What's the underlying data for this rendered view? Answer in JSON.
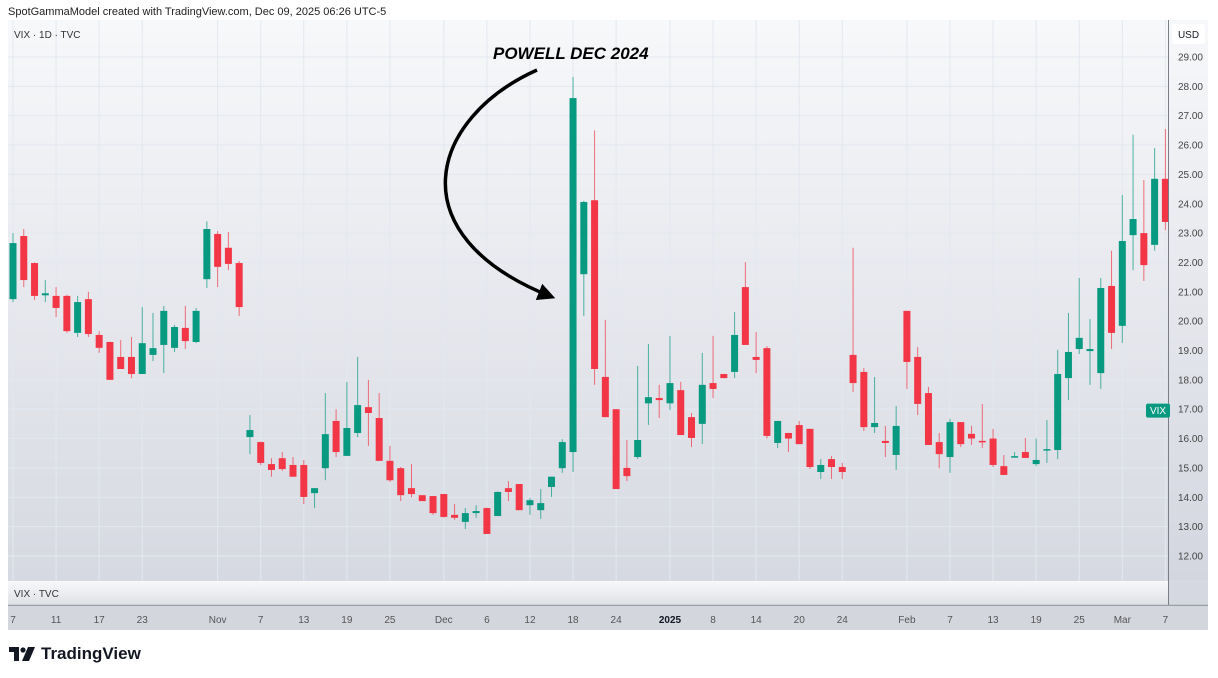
{
  "header": {
    "credit": "SpotGammaModel created with TradingView.com, Dec 09, 2025 06:26 UTC-5"
  },
  "legend": {
    "main": "VIX · 1D · TVC",
    "sub_pane": "VIX · TVC"
  },
  "price_axis": {
    "currency": "USD",
    "price_label": "VIX",
    "price_label_value": 16.95
  },
  "footer": {
    "brand": "TradingView"
  },
  "colors": {
    "up": "#089981",
    "down": "#f23645",
    "label": "#089981"
  },
  "chart_data": {
    "type": "candlestick",
    "title": "VIX · 1D · TVC",
    "annotation": "POWELL DEC 2024",
    "annotation_target_index": 52,
    "ylabel": "USD",
    "ylim": [
      11.2,
      30.2
    ],
    "y_ticks": [
      "12.00",
      "13.00",
      "14.00",
      "15.00",
      "16.00",
      "17.00",
      "18.00",
      "19.00",
      "20.00",
      "21.00",
      "22.00",
      "23.00",
      "24.00",
      "25.00",
      "26.00",
      "27.00",
      "28.00",
      "29.00"
    ],
    "x_ticks": [
      {
        "label": "7",
        "index": 0
      },
      {
        "label": "11",
        "index": 4
      },
      {
        "label": "17",
        "index": 8
      },
      {
        "label": "23",
        "index": 12
      },
      {
        "label": "Nov",
        "index": 19
      },
      {
        "label": "7",
        "index": 23
      },
      {
        "label": "13",
        "index": 27
      },
      {
        "label": "19",
        "index": 31
      },
      {
        "label": "25",
        "index": 35
      },
      {
        "label": "Dec",
        "index": 40
      },
      {
        "label": "6",
        "index": 44
      },
      {
        "label": "12",
        "index": 48
      },
      {
        "label": "18",
        "index": 52
      },
      {
        "label": "24",
        "index": 56
      },
      {
        "label": "2025",
        "index": 61,
        "bold": true
      },
      {
        "label": "8",
        "index": 65
      },
      {
        "label": "14",
        "index": 69
      },
      {
        "label": "20",
        "index": 73
      },
      {
        "label": "24",
        "index": 77
      },
      {
        "label": "Feb",
        "index": 83
      },
      {
        "label": "7",
        "index": 87
      },
      {
        "label": "13",
        "index": 91
      },
      {
        "label": "19",
        "index": 95
      },
      {
        "label": "25",
        "index": 99
      },
      {
        "label": "Mar",
        "index": 103
      },
      {
        "label": "7",
        "index": 107
      }
    ],
    "ohlc": [
      [
        20.75,
        23.0,
        20.65,
        22.66
      ],
      [
        22.9,
        23.14,
        21.16,
        21.4
      ],
      [
        21.98,
        22.0,
        20.72,
        20.86
      ],
      [
        20.88,
        21.4,
        20.65,
        20.95
      ],
      [
        20.86,
        21.16,
        20.14,
        20.45
      ],
      [
        20.86,
        20.9,
        19.6,
        19.66
      ],
      [
        19.6,
        20.86,
        19.46,
        20.65
      ],
      [
        20.75,
        21.0,
        19.46,
        19.56
      ],
      [
        19.53,
        19.66,
        18.92,
        19.09
      ],
      [
        19.29,
        19.3,
        18.0,
        18.0
      ],
      [
        18.78,
        19.36,
        18.37,
        18.37
      ],
      [
        18.78,
        19.46,
        18.06,
        18.2
      ],
      [
        18.2,
        20.48,
        18.2,
        19.25
      ],
      [
        18.85,
        20.28,
        18.64,
        19.08
      ],
      [
        19.19,
        20.52,
        18.23,
        20.35
      ],
      [
        19.09,
        19.87,
        18.95,
        19.8
      ],
      [
        19.77,
        20.52,
        19.05,
        19.32
      ],
      [
        19.29,
        20.45,
        19.25,
        20.35
      ],
      [
        21.43,
        23.4,
        21.13,
        23.14
      ],
      [
        22.97,
        23.07,
        21.16,
        21.85
      ],
      [
        22.5,
        23.04,
        21.74,
        21.95
      ],
      [
        21.98,
        22.05,
        20.18,
        20.48
      ],
      [
        16.05,
        16.8,
        15.47,
        16.29
      ],
      [
        15.88,
        15.9,
        15.1,
        15.17
      ],
      [
        15.13,
        15.33,
        14.7,
        14.93
      ],
      [
        15.33,
        15.54,
        14.9,
        14.96
      ],
      [
        15.1,
        15.37,
        14.7,
        14.7
      ],
      [
        15.1,
        15.27,
        13.77,
        14.01
      ],
      [
        14.14,
        14.31,
        13.63,
        14.31
      ],
      [
        14.99,
        17.55,
        14.58,
        16.15
      ],
      [
        16.6,
        17.0,
        15.37,
        15.54
      ],
      [
        15.41,
        17.93,
        15.41,
        16.36
      ],
      [
        16.19,
        18.78,
        16.05,
        17.14
      ],
      [
        17.07,
        18.0,
        15.75,
        16.87
      ],
      [
        16.7,
        17.55,
        15.24,
        15.24
      ],
      [
        15.24,
        15.75,
        14.52,
        14.58
      ],
      [
        14.99,
        15.03,
        13.87,
        14.07
      ],
      [
        14.31,
        15.13,
        14.0,
        14.11
      ],
      [
        14.07,
        14.07,
        13.87,
        13.87
      ],
      [
        14.04,
        14.04,
        13.4,
        13.46
      ],
      [
        14.11,
        14.11,
        13.3,
        13.33
      ],
      [
        13.4,
        13.77,
        13.23,
        13.3
      ],
      [
        13.16,
        13.63,
        12.92,
        13.46
      ],
      [
        13.46,
        13.73,
        13.3,
        13.53
      ],
      [
        13.63,
        13.65,
        12.75,
        12.75
      ],
      [
        13.36,
        14.2,
        13.36,
        14.18
      ],
      [
        14.31,
        14.55,
        13.87,
        14.18
      ],
      [
        14.45,
        14.45,
        13.56,
        13.56
      ],
      [
        13.73,
        13.97,
        13.4,
        13.9
      ],
      [
        13.56,
        14.28,
        13.26,
        13.8
      ],
      [
        14.35,
        14.7,
        14.01,
        14.7
      ],
      [
        14.99,
        15.98,
        14.83,
        15.88
      ],
      [
        15.54,
        28.32,
        14.86,
        27.6
      ],
      [
        21.6,
        24.1,
        20.18,
        24.06
      ],
      [
        24.12,
        26.5,
        17.83,
        18.37
      ],
      [
        18.1,
        20.04,
        16.73,
        16.73
      ],
      [
        17.0,
        17.0,
        14.28,
        14.28
      ],
      [
        15.0,
        15.95,
        14.55,
        14.72
      ],
      [
        15.37,
        18.47,
        15.3,
        15.95
      ],
      [
        17.2,
        19.22,
        16.46,
        17.41
      ],
      [
        17.38,
        17.83,
        16.7,
        17.31
      ],
      [
        17.2,
        19.5,
        16.97,
        17.89
      ],
      [
        17.65,
        17.93,
        16.12,
        16.12
      ],
      [
        16.73,
        16.87,
        15.71,
        16.02
      ],
      [
        16.5,
        18.92,
        15.81,
        17.83
      ],
      [
        17.89,
        19.5,
        17.38,
        17.69
      ],
      [
        18.2,
        18.2,
        18.06,
        18.06
      ],
      [
        18.27,
        20.31,
        18.06,
        19.53
      ],
      [
        21.16,
        22.01,
        19.19,
        19.19
      ],
      [
        18.78,
        19.63,
        18.23,
        18.68
      ],
      [
        19.08,
        19.15,
        16.0,
        16.09
      ],
      [
        15.85,
        16.6,
        15.68,
        16.6
      ],
      [
        16.19,
        16.19,
        15.54,
        16.0
      ],
      [
        16.46,
        16.6,
        15.81,
        15.81
      ],
      [
        16.33,
        16.33,
        14.96,
        15.03
      ],
      [
        14.86,
        15.3,
        14.62,
        15.1
      ],
      [
        15.3,
        15.41,
        14.62,
        15.03
      ],
      [
        15.03,
        15.17,
        14.62,
        14.86
      ],
      [
        18.85,
        22.5,
        17.59,
        17.89
      ],
      [
        18.27,
        18.4,
        16.26,
        16.39
      ],
      [
        16.39,
        18.1,
        16.19,
        16.53
      ],
      [
        15.92,
        16.43,
        15.37,
        15.85
      ],
      [
        15.44,
        17.11,
        14.93,
        16.43
      ],
      [
        20.35,
        20.35,
        17.69,
        18.61
      ],
      [
        18.78,
        19.12,
        16.8,
        17.18
      ],
      [
        17.55,
        17.76,
        15.78,
        15.78
      ],
      [
        15.88,
        16.19,
        14.99,
        15.47
      ],
      [
        15.37,
        16.67,
        14.83,
        16.56
      ],
      [
        16.56,
        16.56,
        15.71,
        15.81
      ],
      [
        16.16,
        16.43,
        15.78,
        16.0
      ],
      [
        15.92,
        17.18,
        15.68,
        15.88
      ],
      [
        16.0,
        16.33,
        15.03,
        15.1
      ],
      [
        15.06,
        15.44,
        14.76,
        14.76
      ],
      [
        15.37,
        15.54,
        15.37,
        15.4
      ],
      [
        15.54,
        16.02,
        15.34,
        15.34
      ],
      [
        15.13,
        16.0,
        15.06,
        15.27
      ],
      [
        15.61,
        16.63,
        15.17,
        15.64
      ],
      [
        15.61,
        19.02,
        15.3,
        18.2
      ],
      [
        18.06,
        20.28,
        17.31,
        18.95
      ],
      [
        19.05,
        21.47,
        18.88,
        19.43
      ],
      [
        18.98,
        20.07,
        17.83,
        19.05
      ],
      [
        18.23,
        21.47,
        17.69,
        21.13
      ],
      [
        21.2,
        22.4,
        19.05,
        19.6
      ],
      [
        19.84,
        24.3,
        19.26,
        22.73
      ],
      [
        22.93,
        26.35,
        21.74,
        23.48
      ],
      [
        23.0,
        24.81,
        21.37,
        21.91
      ],
      [
        22.6,
        25.9,
        22.4,
        24.85
      ],
      [
        24.85,
        26.55,
        23.1,
        23.38
      ]
    ]
  }
}
